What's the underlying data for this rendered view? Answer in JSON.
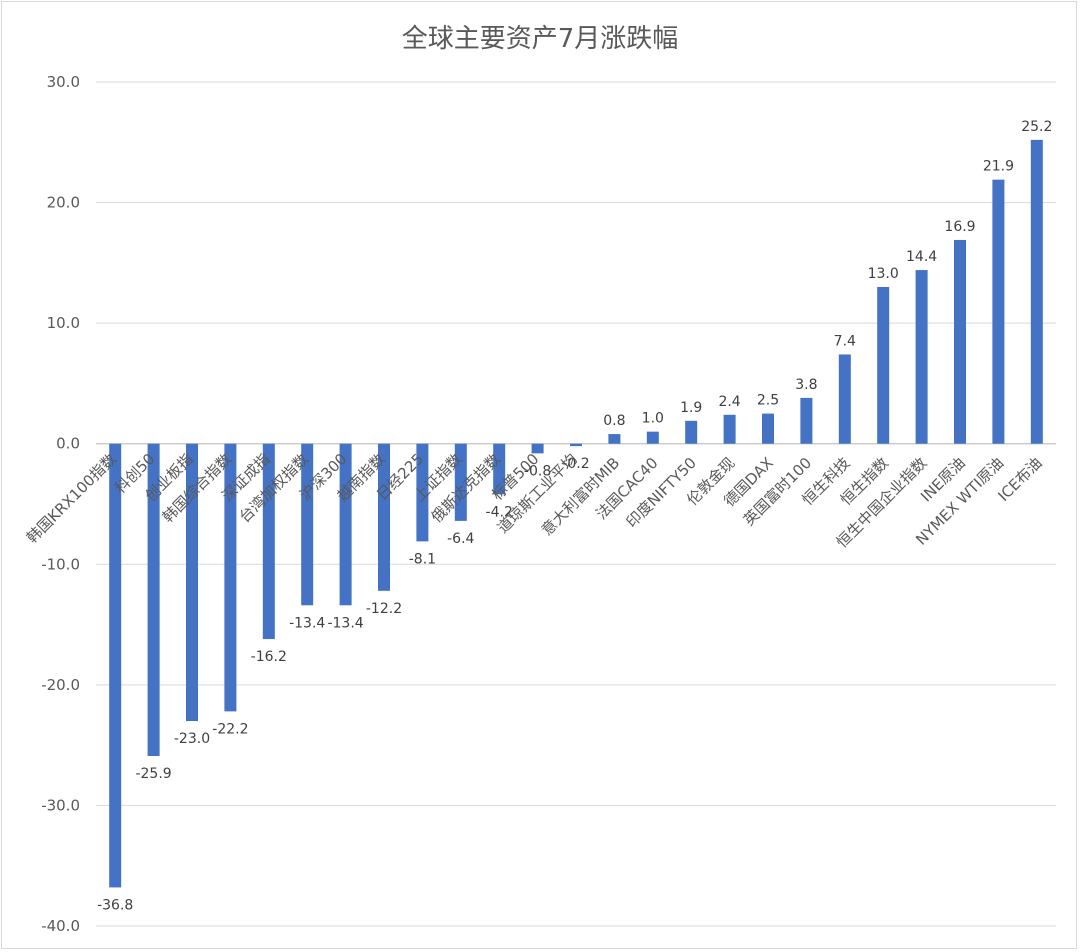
{
  "chart_data": {
    "type": "bar",
    "title": "全球主要资产7月涨跌幅",
    "xlabel": "",
    "ylabel": "",
    "ylim": [
      -40,
      30
    ],
    "yticks": [
      "30.0",
      "20.0",
      "10.0",
      "0.0",
      "-10.0",
      "-20.0",
      "-30.0",
      "-40.0"
    ],
    "ytick_values": [
      30,
      20,
      10,
      0,
      -10,
      -20,
      -30,
      -40
    ],
    "grid": true,
    "legend": "none",
    "bar_color": "#4472c4",
    "categories": [
      "韩国KRX100指数",
      "科创50",
      "创业板指",
      "韩国综合指数",
      "深证成指",
      "台湾加权指数",
      "沪深300",
      "越南指数",
      "日经225",
      "上证指数",
      "俄斯达克指数",
      "标普500",
      "道琼斯工业平均",
      "意大利富时MIB",
      "法国CAC40",
      "印度NIFTY50",
      "伦敦金现",
      "德国DAX",
      "英国富时100",
      "恒生科技",
      "恒生指数",
      "恒生中国企业指数",
      "INE原油",
      "NYMEX WTI原油",
      "ICE布油"
    ],
    "values": [
      -36.8,
      -25.9,
      -23.0,
      -22.2,
      -16.2,
      -13.4,
      -13.4,
      -12.2,
      -8.1,
      -6.4,
      -4.2,
      -0.8,
      -0.2,
      0.8,
      1.0,
      1.9,
      2.4,
      2.5,
      3.8,
      7.4,
      13.0,
      14.4,
      16.9,
      21.9,
      25.2
    ],
    "value_labels": [
      "-36.8",
      "-25.9",
      "-23.0",
      "-22.2",
      "-16.2",
      "-13.4",
      "-13.4",
      "-12.2",
      "-8.1",
      "-6.4",
      "-4.2",
      "-0.8",
      "-0.2",
      "0.8",
      "1.0",
      "1.9",
      "2.4",
      "2.5",
      "3.8",
      "7.4",
      "13.0",
      "14.4",
      "16.9",
      "21.9",
      "25.2"
    ]
  }
}
